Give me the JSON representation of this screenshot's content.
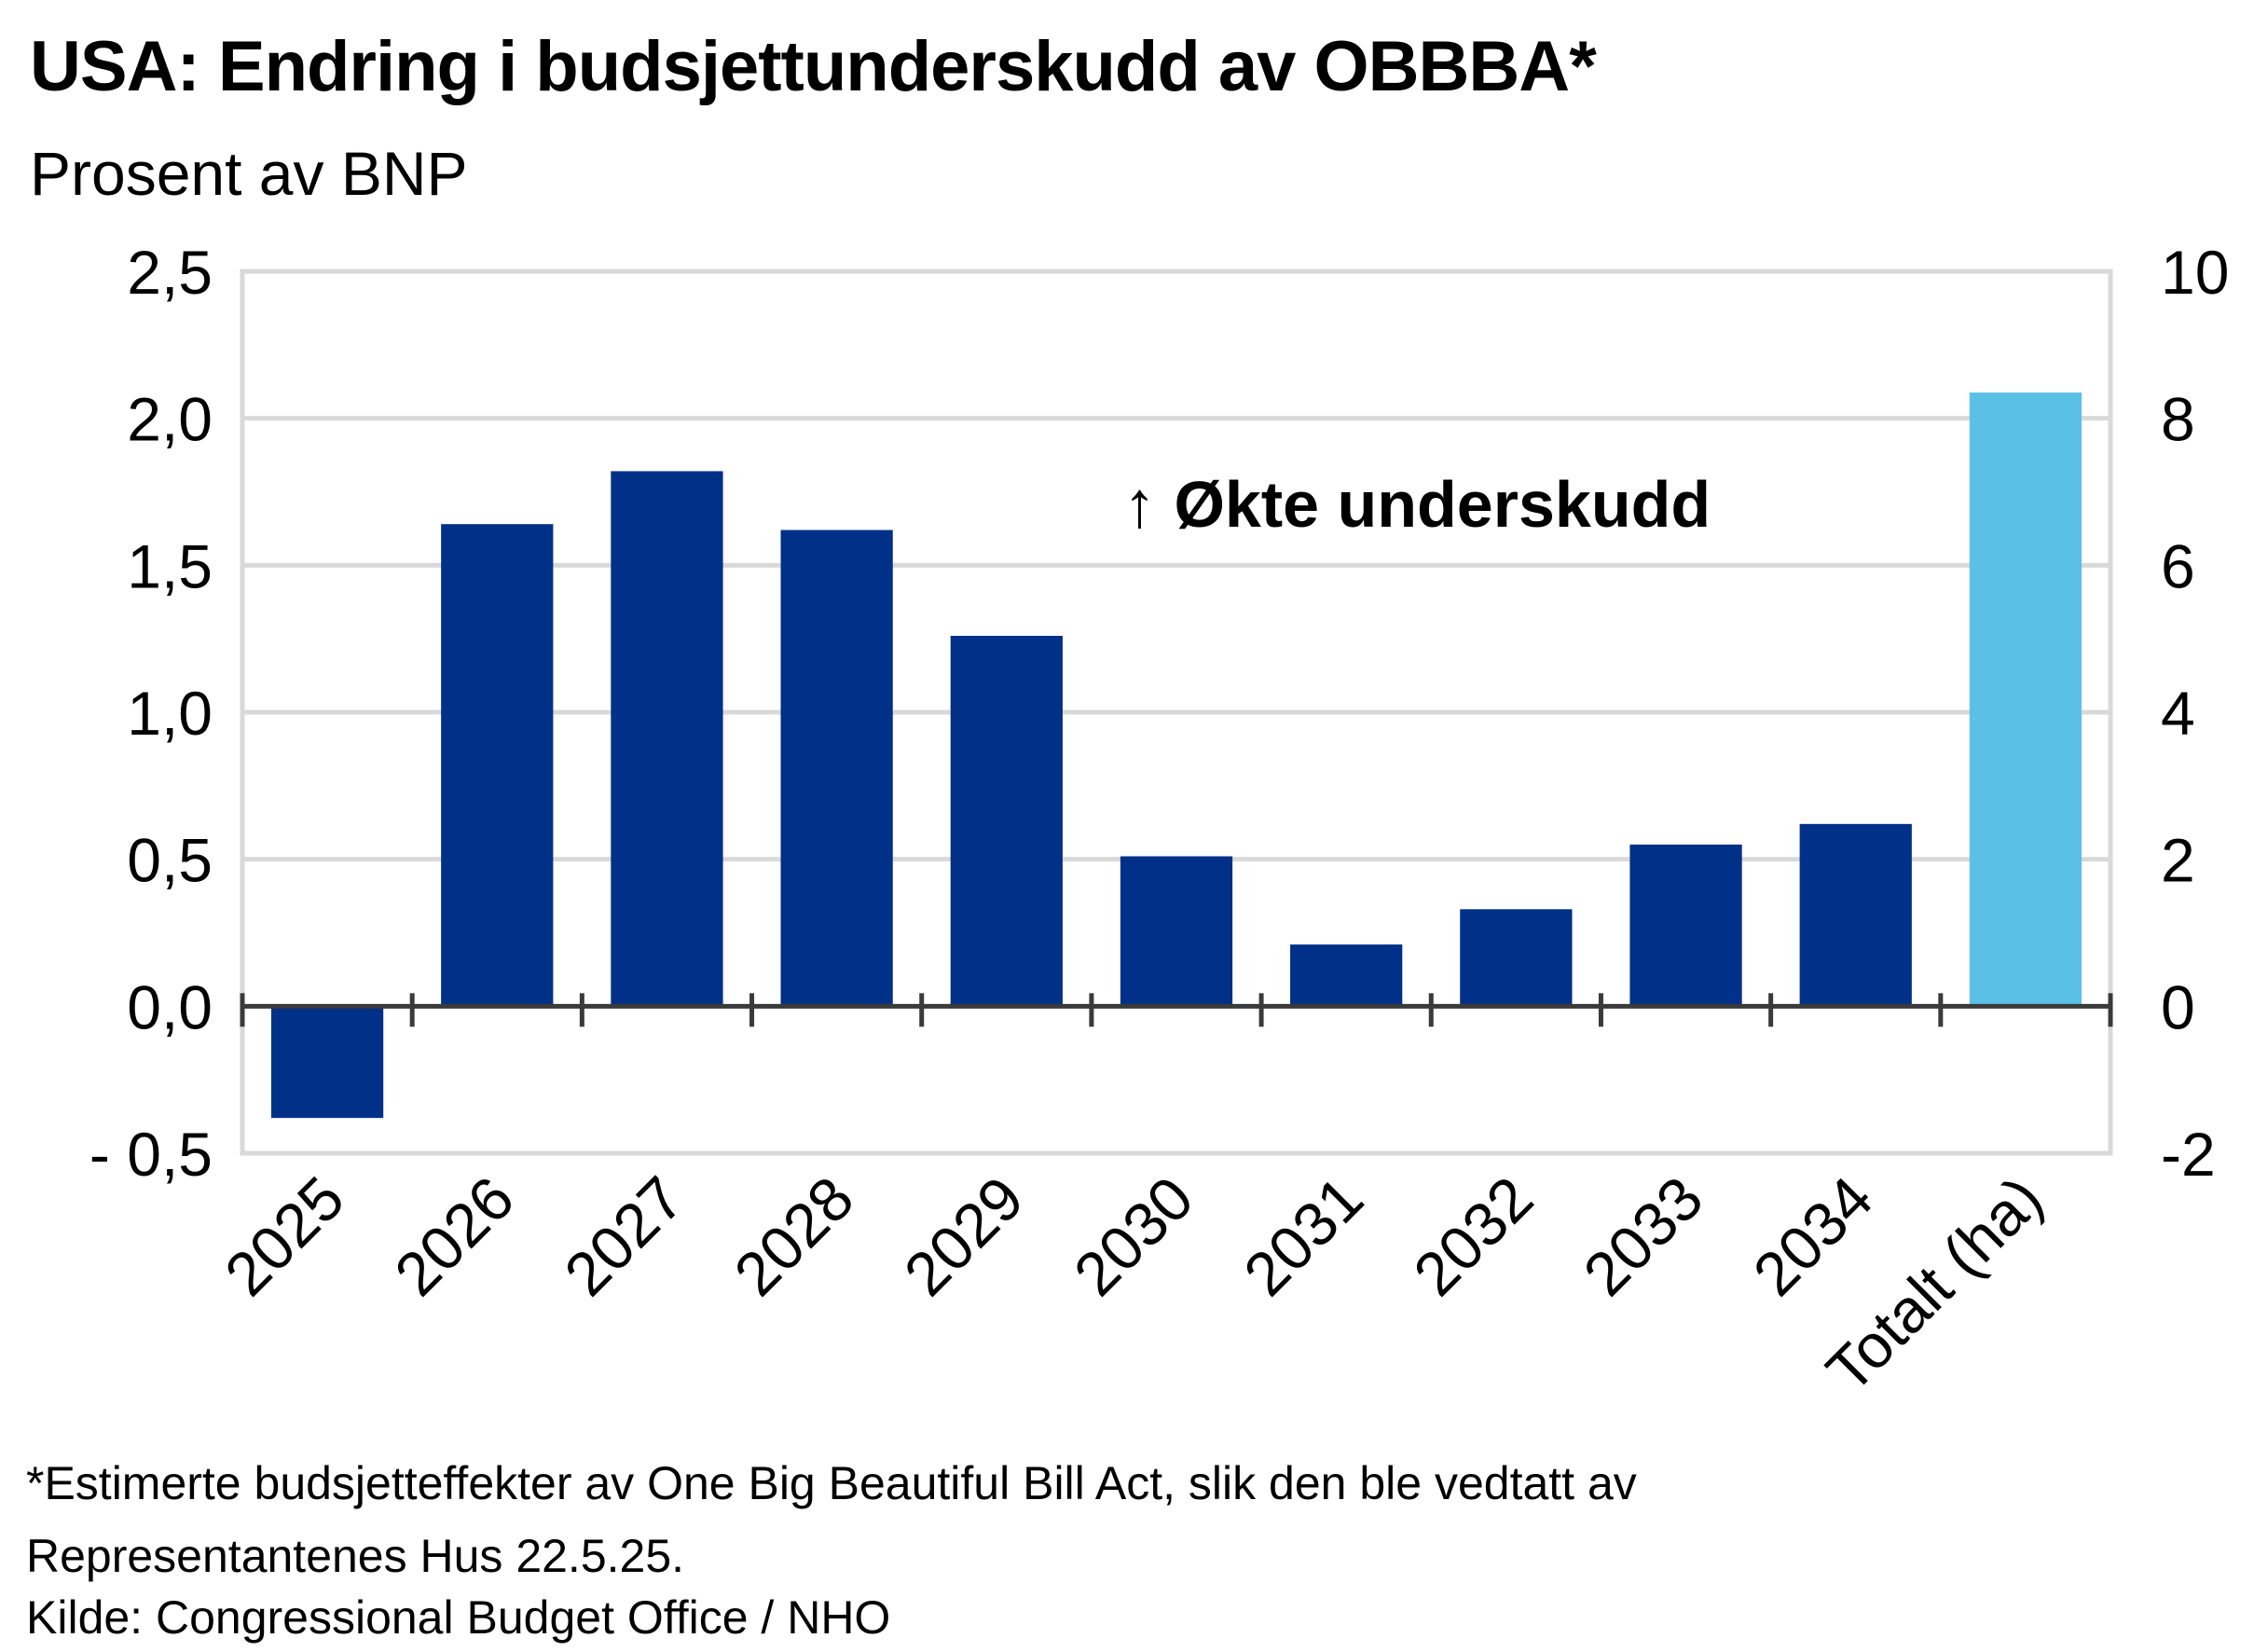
{
  "title": "USA: Endring  i budsjettunderskudd  av OBBBA*",
  "subtitle": "Prosent av BNP",
  "chart_data": {
    "type": "bar",
    "categories": [
      "2025",
      "2026",
      "2027",
      "2028",
      "2029",
      "2030",
      "2031",
      "2032",
      "2033",
      "2034",
      "Totalt (ha)"
    ],
    "series": [
      {
        "axis": "left",
        "color": "#003087",
        "values": [
          -0.38,
          1.64,
          1.82,
          1.62,
          1.26,
          0.51,
          0.21,
          0.33,
          0.55,
          0.62,
          null
        ]
      },
      {
        "axis": "right",
        "color": "#5bc0e6",
        "values": [
          null,
          null,
          null,
          null,
          null,
          null,
          null,
          null,
          null,
          null,
          8.35
        ]
      }
    ],
    "y_left": {
      "min": -0.5,
      "max": 2.5,
      "step": 0.5,
      "tick_labels": [
        "- 0,5",
        "0,0",
        "0,5",
        "1,0",
        "1,5",
        "2,0",
        "2,5"
      ]
    },
    "y_right": {
      "min": -2,
      "max": 10,
      "step": 2,
      "tick_labels": [
        "-2",
        "0",
        "2",
        "4",
        "6",
        "8",
        "10"
      ]
    },
    "annotation": "↑ Økte underskudd",
    "grid": true,
    "legend": "none"
  },
  "footnote_line1": "*Estimerte budsjetteffekter av One Big Beautiful Bill Act, slik den ble vedtatt av",
  "footnote_line2": "Representantenes Hus 22.5.25.",
  "source": "Kilde: Congressional Budget Office / NHO"
}
